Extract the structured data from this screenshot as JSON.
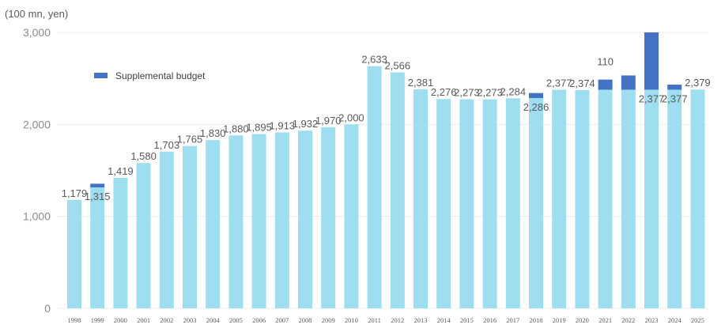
{
  "chart_data": {
    "type": "bar",
    "unit_label": "(100 mn, yen)",
    "ylim": [
      0,
      3000
    ],
    "yticks": [
      "0",
      "1,000",
      "2,000",
      "3,000"
    ],
    "grid": true,
    "legend_position": "top-left",
    "categories": [
      "1998",
      "1999",
      "2000",
      "2001",
      "2002",
      "2003",
      "2004",
      "2005",
      "2006",
      "2007",
      "2008",
      "2009",
      "2010",
      "2011",
      "2012",
      "2013",
      "2014",
      "2015",
      "2016",
      "2017",
      "2018",
      "2019",
      "2020",
      "2021",
      "2022",
      "2023",
      "2024",
      "2025"
    ],
    "series": [
      {
        "color": "#9fdef0",
        "values": [
          1179,
          1315,
          1419,
          1580,
          1703,
          1765,
          1830,
          1880,
          1895,
          1913,
          1932,
          1970,
          2000,
          2633,
          2566,
          2381,
          2276,
          2273,
          2273,
          2284,
          2286,
          2377,
          2374,
          2377,
          2377,
          2377,
          2377,
          2379
        ]
      },
      {
        "name": "Supplemental budget",
        "color": "#4472c4",
        "values": [
          0,
          40,
          0,
          0,
          0,
          0,
          0,
          0,
          0,
          0,
          0,
          0,
          0,
          0,
          0,
          0,
          0,
          0,
          0,
          0,
          55,
          0,
          0,
          110,
          155,
          630,
          55,
          0
        ]
      }
    ],
    "data_labels": [
      "1,179",
      "1,315",
      "1,419",
      "1,580",
      "1,703",
      "1,765",
      "1,830",
      "1,880",
      "1,895",
      "1,913",
      "1,932",
      "1,970",
      "2,000",
      "2,633",
      "2,566",
      "2,381",
      "2,276",
      "2,273",
      "2,273",
      "2,284",
      "2,286",
      "2,377",
      "2,374",
      "",
      "",
      "2,377",
      "2,377",
      "2,379"
    ],
    "extra_label": "110"
  }
}
